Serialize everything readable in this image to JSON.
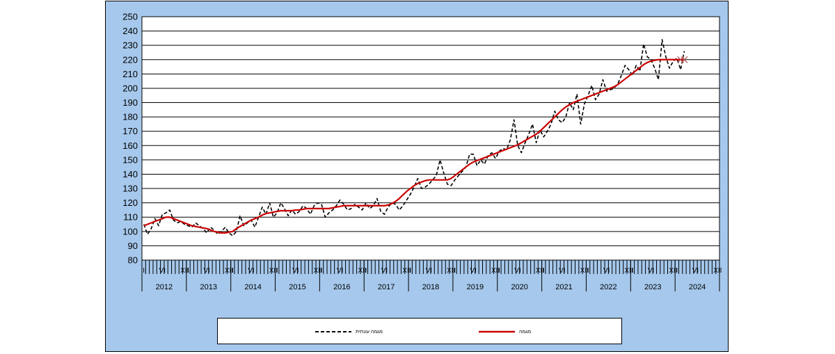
{
  "chart_data": {
    "type": "line",
    "title": "",
    "xlabel": "",
    "ylabel": "",
    "ylim": [
      80,
      250
    ],
    "yticks": [
      80,
      90,
      100,
      110,
      120,
      130,
      140,
      150,
      160,
      170,
      180,
      190,
      200,
      210,
      220,
      230,
      240,
      250
    ],
    "grid": true,
    "years": [
      "2012",
      "2013",
      "2014",
      "2015",
      "2016",
      "2017",
      "2018",
      "2019",
      "2020",
      "2021",
      "2022",
      "2023",
      "2024"
    ],
    "month_labels": {
      "1": "I",
      "6": "VI",
      "12": "XII"
    },
    "legend_position": "bottom",
    "series": [
      {
        "name": "מגמה עונתית",
        "style": "dashed",
        "color": "#000000",
        "values": [
          105,
          98,
          102,
          109,
          104,
          112,
          113,
          115,
          108,
          106,
          107,
          105,
          104,
          103,
          106,
          104,
          102,
          99,
          103,
          101,
          98,
          100,
          103,
          99,
          97,
          100,
          111,
          104,
          106,
          108,
          103,
          110,
          117,
          112,
          120,
          110,
          113,
          120,
          116,
          111,
          115,
          112,
          114,
          118,
          116,
          112,
          118,
          120,
          119,
          110,
          113,
          115,
          118,
          122,
          119,
          115,
          116,
          119,
          117,
          115,
          120,
          116,
          118,
          123,
          114,
          112,
          117,
          120,
          119,
          115,
          118,
          122,
          126,
          131,
          137,
          130,
          131,
          133,
          136,
          139,
          150,
          141,
          133,
          132,
          136,
          139,
          142,
          145,
          154,
          154,
          146,
          150,
          147,
          153,
          155,
          151,
          156,
          158,
          157,
          164,
          178,
          160,
          155,
          162,
          168,
          175,
          162,
          171,
          166,
          170,
          175,
          184,
          178,
          176,
          180,
          190,
          185,
          196,
          175,
          189,
          195,
          202,
          192,
          196,
          206,
          198,
          199,
          200,
          203,
          209,
          216,
          213,
          209,
          216,
          212,
          231,
          222,
          220,
          214,
          206,
          234,
          222,
          214,
          219,
          221,
          213,
          226
        ]
      },
      {
        "name": "מגמה",
        "style": "solid",
        "color": "#cc0000",
        "values": [
          104,
          105,
          106,
          107,
          108,
          109,
          110,
          110,
          109,
          108,
          107,
          106,
          105,
          104,
          103.5,
          103,
          102.5,
          102,
          101,
          100,
          99.5,
          99,
          99,
          99.5,
          100,
          102,
          103.5,
          105,
          106.5,
          108,
          109,
          110,
          111.5,
          112.5,
          113,
          113.5,
          114,
          114.5,
          114.5,
          114.5,
          114.5,
          115,
          115,
          115.5,
          116,
          116,
          116,
          116,
          116,
          116,
          116,
          116.5,
          117,
          117.5,
          118,
          118,
          118,
          118,
          118,
          118,
          118,
          118,
          118,
          118,
          118,
          118,
          118.5,
          119.5,
          121,
          123,
          125.5,
          128,
          130,
          132,
          133.5,
          134.5,
          135.5,
          136,
          136,
          136,
          136,
          136,
          136,
          137,
          139,
          141,
          143,
          145,
          147,
          148.5,
          149.5,
          150.5,
          151.5,
          152.5,
          153.5,
          154.5,
          155.5,
          156.5,
          157.5,
          158.5,
          159.5,
          160.5,
          162,
          163.5,
          165,
          166.5,
          168,
          170,
          172.5,
          175,
          177.5,
          180,
          182.5,
          185,
          187,
          188.5,
          190,
          191,
          192,
          193,
          194,
          195,
          196,
          197,
          198,
          199,
          200,
          201,
          202.5,
          204.5,
          206.5,
          208.5,
          210.5,
          212.5,
          214.5,
          216.5,
          218,
          219,
          219.5,
          220,
          220,
          220,
          220,
          220,
          220,
          220,
          220
        ]
      }
    ]
  }
}
